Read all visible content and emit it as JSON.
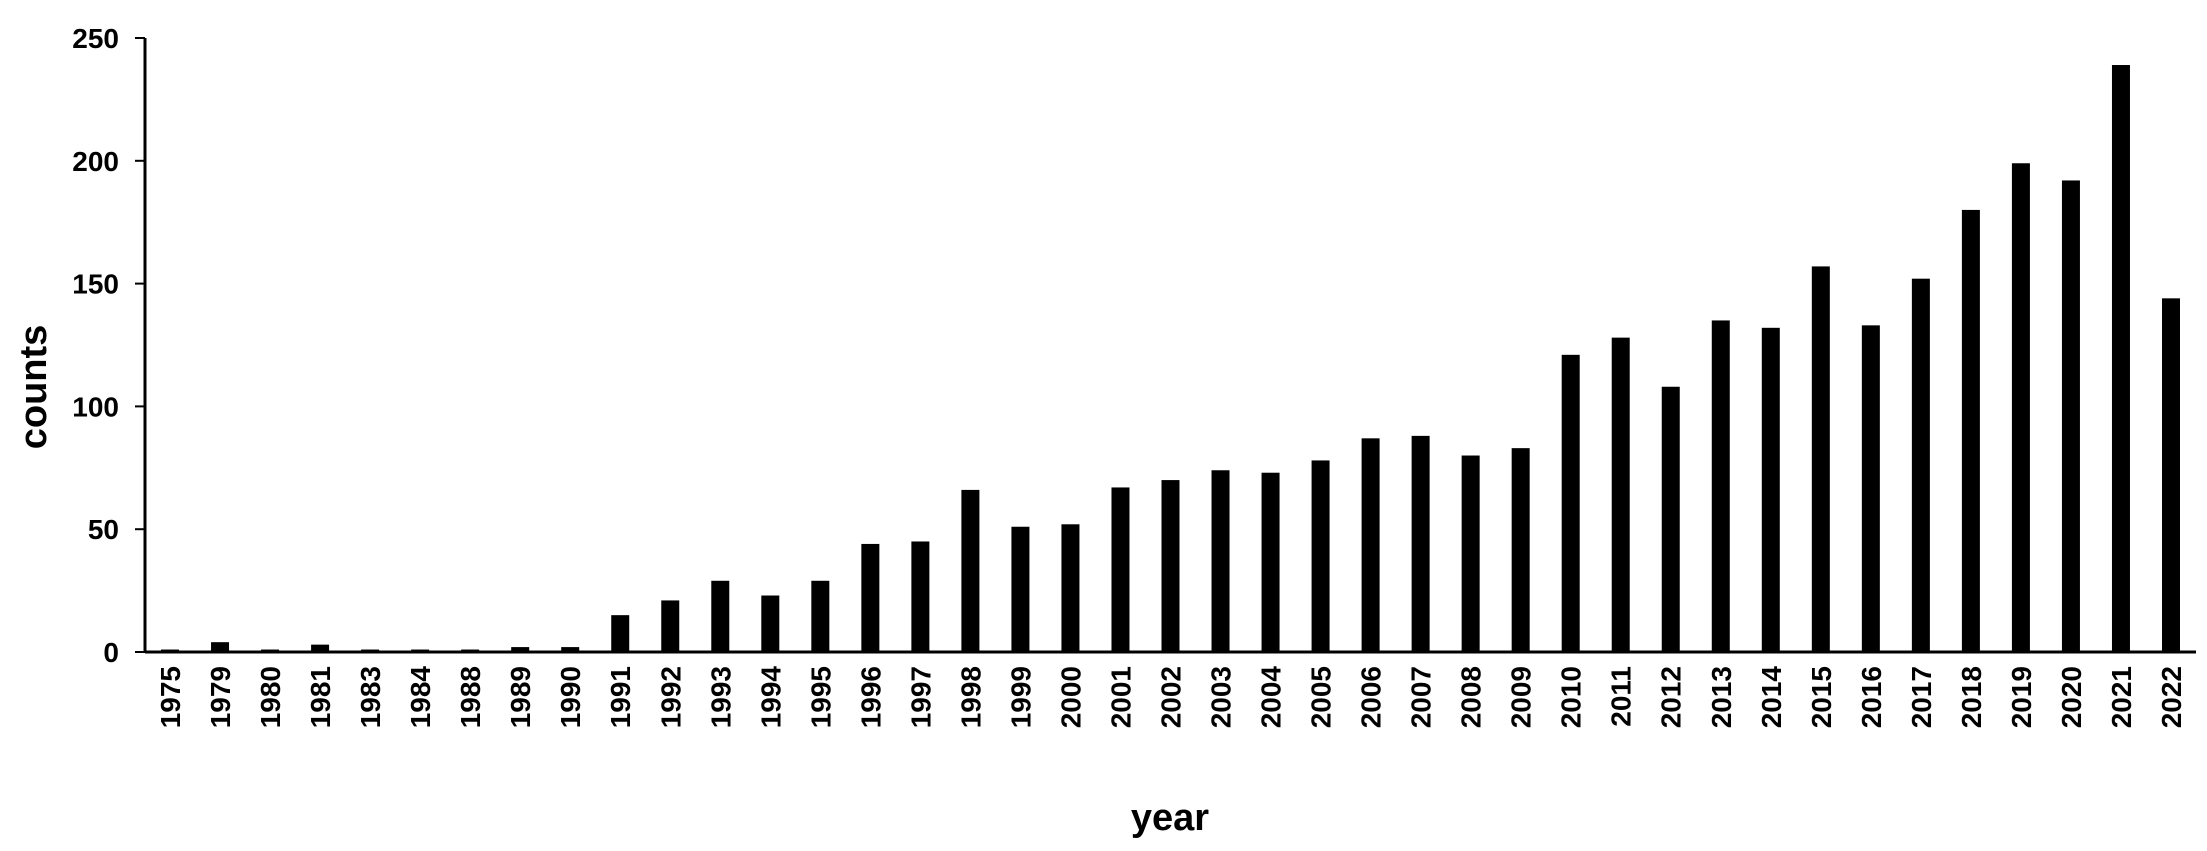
{
  "chart_data": {
    "type": "bar",
    "x_label": "year",
    "y_label": "counts",
    "categories": [
      "1975",
      "1979",
      "1980",
      "1981",
      "1983",
      "1984",
      "1988",
      "1989",
      "1990",
      "1991",
      "1992",
      "1993",
      "1994",
      "1995",
      "1996",
      "1997",
      "1998",
      "1999",
      "2000",
      "2001",
      "2002",
      "2003",
      "2004",
      "2005",
      "2006",
      "2007",
      "2008",
      "2009",
      "2010",
      "2011",
      "2012",
      "2013",
      "2014",
      "2015",
      "2016",
      "2017",
      "2018",
      "2019",
      "2020",
      "2021",
      "2022"
    ],
    "values": [
      1,
      4,
      1,
      3,
      1,
      1,
      1,
      2,
      2,
      15,
      21,
      29,
      23,
      29,
      44,
      45,
      66,
      51,
      52,
      67,
      70,
      74,
      73,
      78,
      87,
      88,
      80,
      83,
      121,
      128,
      108,
      135,
      132,
      157,
      133,
      152,
      180,
      199,
      192,
      239,
      144
    ],
    "color": "#000000",
    "ylim": [
      0,
      250
    ],
    "yticks": [
      0,
      50,
      100,
      150,
      200,
      250
    ],
    "grid": false
  }
}
